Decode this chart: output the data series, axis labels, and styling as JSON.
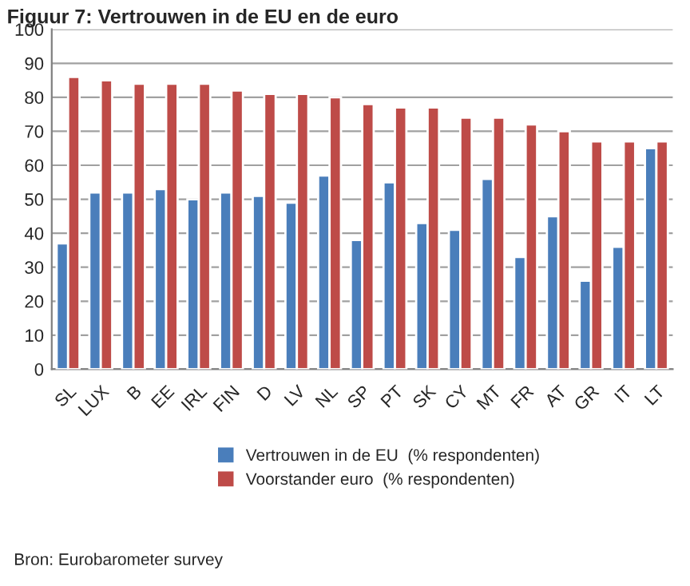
{
  "chart_data": {
    "type": "bar",
    "title": "Figuur 7: Vertrouwen in de EU en de euro",
    "categories": [
      "SL",
      "LUX",
      "B",
      "EE",
      "IRL",
      "FIN",
      "D",
      "LV",
      "NL",
      "SP",
      "PT",
      "SK",
      "CY",
      "MT",
      "FR",
      "AT",
      "GR",
      "IT",
      "LT"
    ],
    "series": [
      {
        "name": "Vertrouwen in de EU  (% respondenten)",
        "color": "#4a7ebb",
        "values": [
          37,
          52,
          52,
          53,
          50,
          52,
          51,
          49,
          57,
          38,
          55,
          43,
          41,
          56,
          33,
          45,
          26,
          36,
          65
        ]
      },
      {
        "name": "Voorstander euro  (% respondenten)",
        "color": "#be4b48",
        "values": [
          86,
          85,
          84,
          84,
          84,
          82,
          81,
          81,
          80,
          78,
          77,
          77,
          74,
          74,
          72,
          70,
          67,
          67,
          67
        ]
      }
    ],
    "ylim": [
      0,
      100
    ],
    "yticks": [
      0,
      10,
      20,
      30,
      40,
      50,
      60,
      70,
      80,
      90,
      100
    ],
    "grid": "y",
    "legend": "bottom",
    "annotations": [
      "Bron: Eurobarometer survey"
    ]
  }
}
